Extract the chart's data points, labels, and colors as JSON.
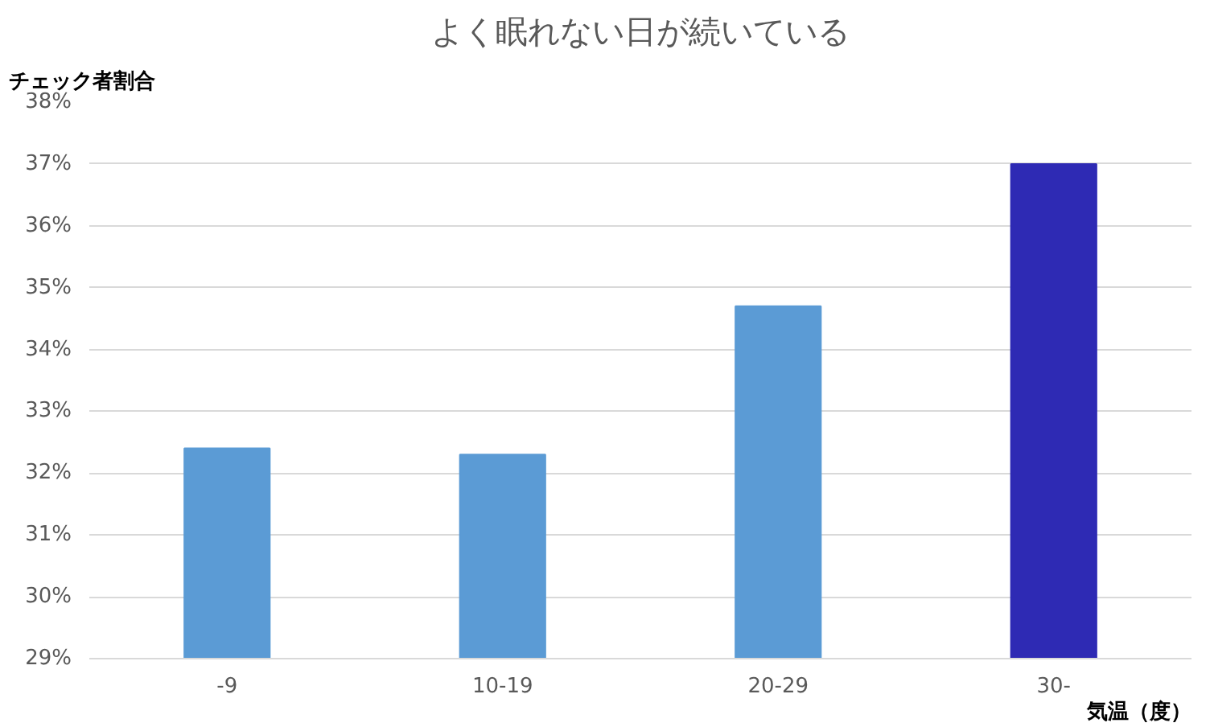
{
  "chart_data": {
    "type": "bar",
    "title": "よく眠れない日が続いている",
    "ylabel": "チェック者割合",
    "xlabel": "気温（度）",
    "categories": [
      "-9",
      "10-19",
      "20-29",
      "30-"
    ],
    "values": [
      32.4,
      32.3,
      34.7,
      37.0
    ],
    "colors": [
      "#5b9bd5",
      "#5b9bd5",
      "#5b9bd5",
      "#2e2ab4"
    ],
    "ylim": [
      29,
      38
    ],
    "yticks": [
      {
        "value": 29,
        "label": "29%"
      },
      {
        "value": 30,
        "label": "30%"
      },
      {
        "value": 31,
        "label": "31%"
      },
      {
        "value": 32,
        "label": "32%"
      },
      {
        "value": 33,
        "label": "33%"
      },
      {
        "value": 34,
        "label": "34%"
      },
      {
        "value": 35,
        "label": "35%"
      },
      {
        "value": 36,
        "label": "36%"
      },
      {
        "value": 37,
        "label": "37%"
      },
      {
        "value": 38,
        "label": "38%"
      }
    ],
    "grid": "y"
  }
}
